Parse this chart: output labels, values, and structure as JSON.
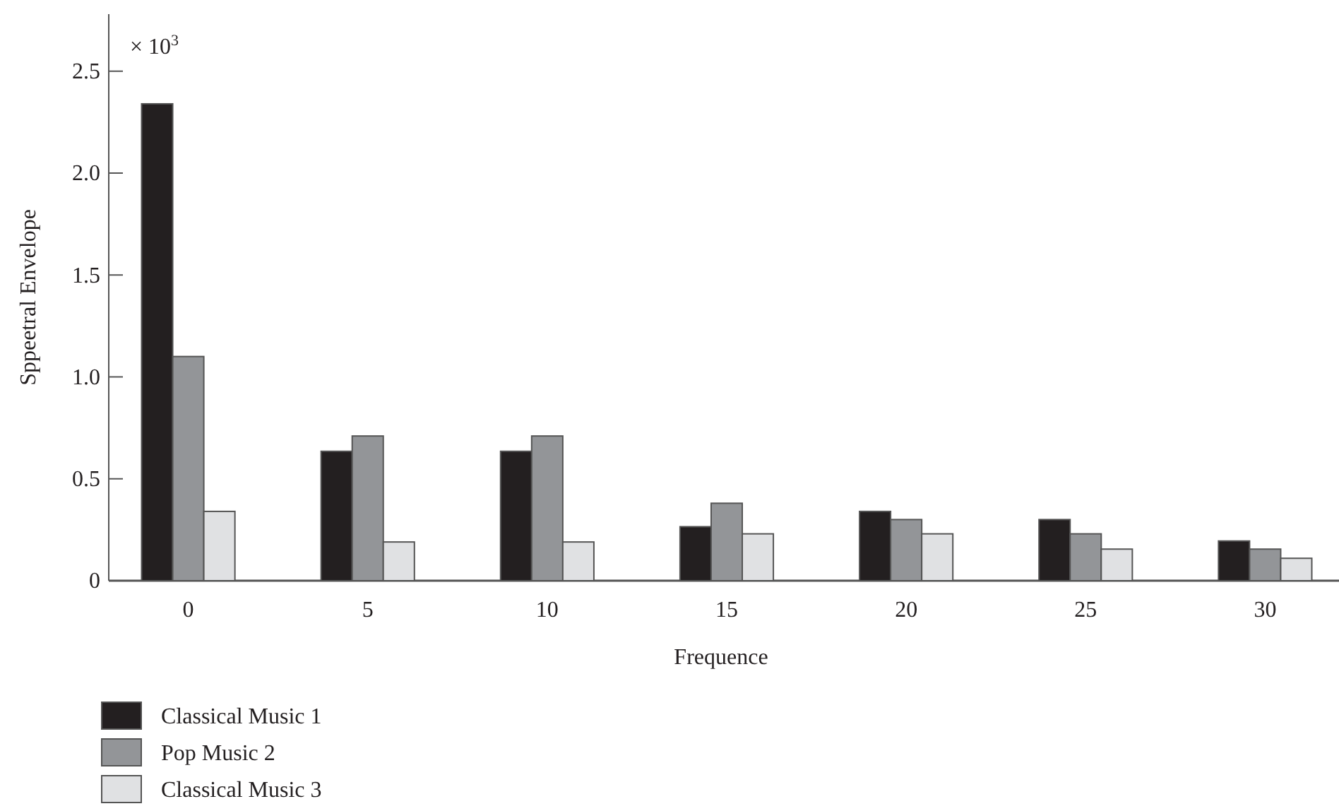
{
  "chart_data": {
    "type": "bar",
    "xlabel": "Frequence",
    "ylabel": "Sppeetral Envelope",
    "annotations": [
      "× 10$^{3}$"
    ],
    "categories": [
      "0",
      "5",
      "10",
      "15",
      "20",
      "25",
      "30"
    ],
    "series": [
      {
        "name": "Classical Music 1",
        "color": "#231f20",
        "values": [
          2.34,
          0.635,
          0.635,
          0.265,
          0.34,
          0.3,
          0.195
        ]
      },
      {
        "name": "Pop Music 2",
        "color": "#939598",
        "values": [
          1.1,
          0.71,
          0.71,
          0.38,
          0.3,
          0.23,
          0.155
        ]
      },
      {
        "name": "Classical Music 3",
        "color": "#e0e1e3",
        "values": [
          0.34,
          0.19,
          0.19,
          0.23,
          0.23,
          0.155,
          0.11
        ]
      }
    ],
    "ylim": [
      0,
      2.78
    ],
    "yticks": [
      0,
      0.5,
      {
        "value": 1,
        "label": "1.0"
      },
      1.5,
      {
        "value": 2,
        "label": "2.0"
      },
      2.5
    ],
    "grid": false,
    "legend": "bottom left"
  }
}
